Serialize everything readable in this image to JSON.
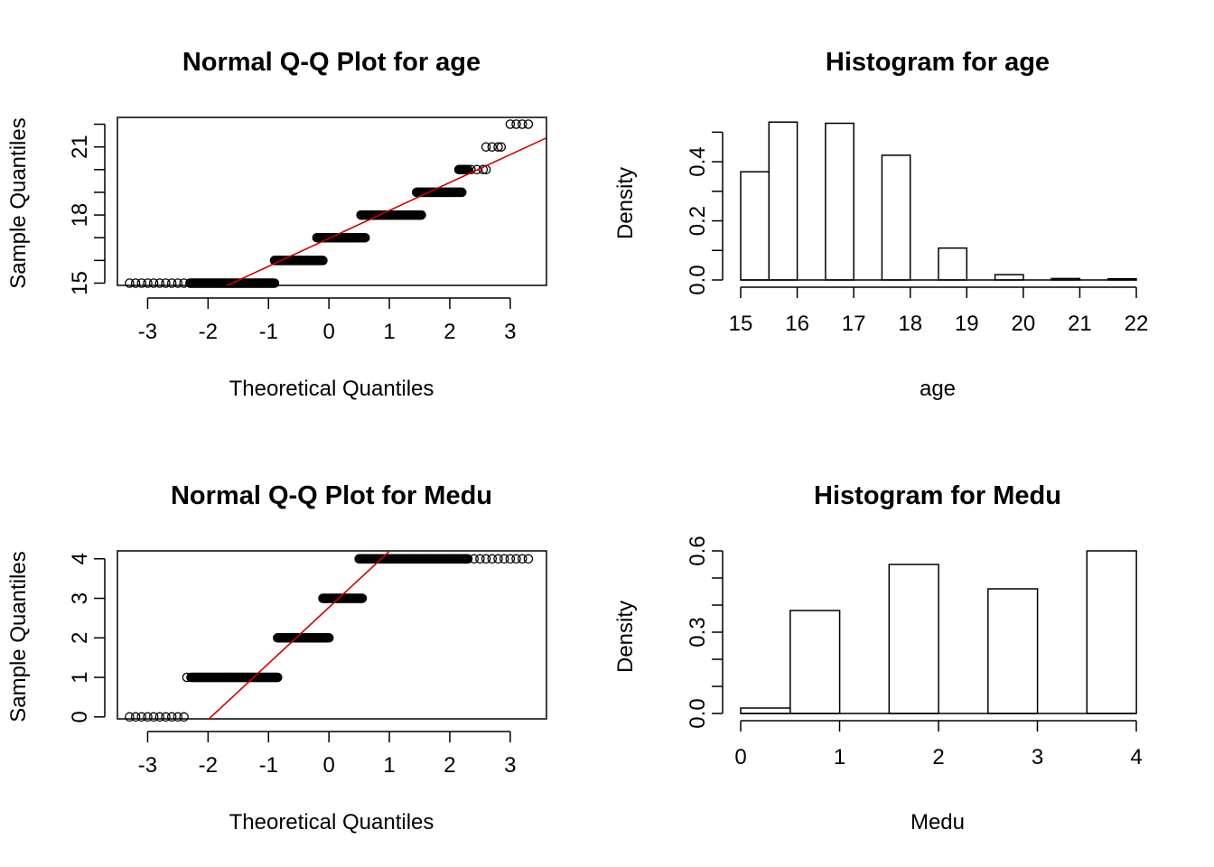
{
  "colors": {
    "background": "#ffffff",
    "ink": "#000000",
    "qqline": "#d00000"
  },
  "chart_data": [
    {
      "type": "scatter",
      "title": "Normal Q-Q Plot for  age",
      "xlabel": "Theoretical Quantiles",
      "ylabel": "Sample Quantiles",
      "xlim": [
        -3.5,
        3.6
      ],
      "ylim": [
        14.9,
        22.3
      ],
      "xticks": [
        "-3",
        "-2",
        "-1",
        "0",
        "1",
        "2",
        "3"
      ],
      "yticks": [
        "15",
        "16",
        "17",
        "18",
        "19",
        "20",
        "21",
        "22"
      ],
      "ytick_labels": [
        "15",
        "",
        "",
        "18",
        "",
        "",
        "21",
        ""
      ],
      "groups": [
        {
          "y": 15,
          "x_from": -3.3,
          "x_to": -0.9
        },
        {
          "y": 16,
          "x_from": -0.9,
          "x_to": -0.1
        },
        {
          "y": 17,
          "x_from": -0.2,
          "x_to": 0.6
        },
        {
          "y": 18,
          "x_from": 0.53,
          "x_to": 1.53
        },
        {
          "y": 19,
          "x_from": 1.45,
          "x_to": 2.2
        },
        {
          "y": 20,
          "x_from": 2.15,
          "x_to": 2.6
        },
        {
          "y": 21,
          "x_from": 2.6,
          "x_to": 2.85
        },
        {
          "y": 22,
          "x_from": 3.0,
          "x_to": 3.3
        }
      ],
      "qqline": {
        "color": "#d00000",
        "intercept": 16.97,
        "slope": 1.23
      }
    },
    {
      "type": "bar",
      "title": "Histogram for  age",
      "xlabel": "age",
      "ylabel": "Density",
      "xlim": [
        15,
        22
      ],
      "ylim": [
        0,
        0.55
      ],
      "xticks": [
        "15",
        "16",
        "17",
        "18",
        "19",
        "20",
        "21",
        "22"
      ],
      "yticks": [
        "0.0",
        "0.1",
        "0.2",
        "0.3",
        "0.4",
        "0.5"
      ],
      "ytick_labels": [
        "0.0",
        "",
        "0.2",
        "",
        "0.4",
        ""
      ],
      "bins": [
        {
          "x0": 15,
          "x1": 15.5,
          "density": 0.366
        },
        {
          "x0": 15.5,
          "x1": 16,
          "density": 0.534
        },
        {
          "x0": 16.5,
          "x1": 17,
          "density": 0.53
        },
        {
          "x0": 17.5,
          "x1": 18,
          "density": 0.422
        },
        {
          "x0": 18.5,
          "x1": 19,
          "density": 0.108
        },
        {
          "x0": 19.5,
          "x1": 20,
          "density": 0.018
        },
        {
          "x0": 20.5,
          "x1": 21,
          "density": 0.005
        },
        {
          "x0": 21.5,
          "x1": 22,
          "density": 0.004
        }
      ]
    },
    {
      "type": "scatter",
      "title": "Normal Q-Q Plot for  Medu",
      "xlabel": "Theoretical Quantiles",
      "ylabel": "Sample Quantiles",
      "xlim": [
        -3.5,
        3.6
      ],
      "ylim": [
        -0.05,
        4.2
      ],
      "xticks": [
        "-3",
        "-2",
        "-1",
        "0",
        "1",
        "2",
        "3"
      ],
      "yticks": [
        "0",
        "1",
        "2",
        "3",
        "4"
      ],
      "ytick_labels": [
        "0",
        "1",
        "2",
        "3",
        "4"
      ],
      "groups": [
        {
          "y": 0,
          "x_from": -3.3,
          "x_to": -2.4
        },
        {
          "y": 1,
          "x_from": -2.35,
          "x_to": -0.85
        },
        {
          "y": 2,
          "x_from": -0.85,
          "x_to": 0.0
        },
        {
          "y": 3,
          "x_from": -0.1,
          "x_to": 0.55
        },
        {
          "y": 4,
          "x_from": 0.5,
          "x_to": 3.3
        }
      ],
      "qqline": {
        "color": "#d00000",
        "intercept": 2.77,
        "slope": 1.42
      }
    },
    {
      "type": "bar",
      "title": "Histogram for  Medu",
      "xlabel": "Medu",
      "ylabel": "Density",
      "xlim": [
        0,
        4
      ],
      "ylim": [
        0,
        0.6
      ],
      "xticks": [
        "0",
        "1",
        "2",
        "3",
        "4"
      ],
      "yticks": [
        "0.0",
        "0.1",
        "0.2",
        "0.3",
        "0.4",
        "0.5",
        "0.6"
      ],
      "ytick_labels": [
        "0.0",
        "",
        "",
        "0.3",
        "",
        "",
        "0.6"
      ],
      "bins": [
        {
          "x0": 0,
          "x1": 0.5,
          "density": 0.02
        },
        {
          "x0": 0.5,
          "x1": 1,
          "density": 0.38
        },
        {
          "x0": 1.5,
          "x1": 2,
          "density": 0.55
        },
        {
          "x0": 2.5,
          "x1": 3,
          "density": 0.46
        },
        {
          "x0": 3.5,
          "x1": 4,
          "density": 0.6
        }
      ]
    }
  ]
}
